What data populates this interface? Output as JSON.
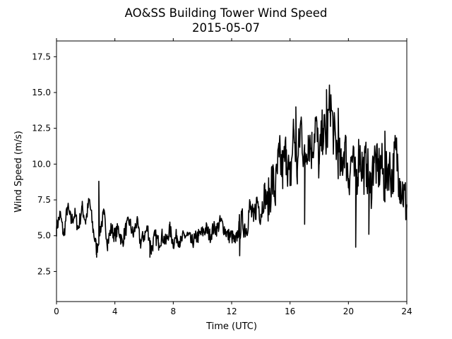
{
  "chart_data": {
    "type": "line",
    "title": "AO&SS Building Tower Wind Speed",
    "subtitle": "2015-05-07",
    "xlabel": "Time (UTC)",
    "ylabel": "Wind Speed (m/s)",
    "xlim": [
      0,
      24
    ],
    "ylim": [
      0.4,
      18.6
    ],
    "x_ticks": [
      0,
      4,
      8,
      12,
      16,
      20,
      24
    ],
    "y_ticks": [
      2.5,
      5.0,
      7.5,
      10.0,
      12.5,
      15.0,
      17.5
    ],
    "x_tick_labels": [
      "0",
      "4",
      "8",
      "12",
      "16",
      "20",
      "24"
    ],
    "y_tick_labels": [
      "2.5",
      "5.0",
      "7.5",
      "10.0",
      "12.5",
      "15.0",
      "17.5"
    ],
    "grid": false,
    "series": [
      {
        "color": "#000000",
        "x": [
          0.0,
          0.25,
          0.5,
          0.75,
          1.0,
          1.25,
          1.5,
          1.75,
          2.0,
          2.25,
          2.5,
          2.75,
          3.0,
          3.25,
          3.5,
          3.75,
          4.0,
          4.25,
          4.5,
          4.75,
          5.0,
          5.25,
          5.5,
          5.75,
          6.0,
          6.25,
          6.5,
          6.75,
          7.0,
          7.25,
          7.5,
          7.75,
          8.0,
          8.25,
          8.5,
          8.75,
          9.0,
          9.25,
          9.5,
          9.75,
          10.0,
          10.25,
          10.5,
          10.75,
          11.0,
          11.25,
          11.5,
          11.75,
          12.0,
          12.25,
          12.5,
          12.75,
          13.0,
          13.25,
          13.5,
          13.75,
          14.0,
          14.25,
          14.5,
          14.75,
          15.0,
          15.25,
          15.5,
          15.75,
          16.0,
          16.25,
          16.5,
          16.75,
          17.0,
          17.25,
          17.5,
          17.75,
          18.0,
          18.25,
          18.5,
          18.75,
          19.0,
          19.25,
          19.5,
          19.75,
          20.0,
          20.25,
          20.5,
          20.75,
          21.0,
          21.25,
          21.5,
          21.75,
          22.0,
          22.25,
          22.5,
          22.75,
          23.0,
          23.25,
          23.5,
          23.75,
          24.0
        ],
        "y": [
          5.5,
          6.5,
          5.0,
          7.0,
          6.0,
          6.5,
          5.5,
          7.0,
          6.0,
          7.5,
          5.5,
          4.0,
          5.5,
          6.5,
          4.5,
          5.5,
          5.0,
          5.5,
          4.5,
          5.5,
          6.0,
          5.0,
          6.0,
          4.5,
          5.0,
          5.5,
          4.0,
          5.0,
          4.5,
          5.0,
          4.5,
          5.5,
          4.5,
          5.0,
          4.5,
          5.0,
          5.0,
          4.5,
          4.8,
          5.0,
          5.2,
          5.5,
          5.0,
          5.5,
          5.5,
          6.0,
          5.5,
          5.0,
          5.0,
          4.5,
          5.5,
          6.0,
          5.5,
          7.0,
          6.0,
          7.5,
          6.5,
          8.0,
          7.0,
          9.0,
          8.0,
          10.5,
          9.5,
          11.0,
          8.5,
          12.5,
          9.5,
          13.0,
          10.0,
          12.0,
          11.0,
          13.0,
          10.0,
          12.5,
          11.5,
          14.5,
          12.0,
          11.0,
          9.5,
          11.5,
          9.0,
          10.5,
          8.5,
          11.0,
          9.5,
          10.0,
          8.0,
          10.5,
          9.5,
          10.0,
          8.5,
          10.0,
          9.0,
          11.0,
          9.0,
          8.0,
          7.0
        ],
        "peaks": [
          {
            "x": 2.9,
            "y": 8.8
          },
          {
            "x": 2.75,
            "y": 3.5
          },
          {
            "x": 6.4,
            "y": 3.5
          },
          {
            "x": 12.55,
            "y": 3.6
          },
          {
            "x": 16.4,
            "y": 14.0
          },
          {
            "x": 17.0,
            "y": 5.8
          },
          {
            "x": 18.5,
            "y": 15.2
          },
          {
            "x": 20.5,
            "y": 4.2
          },
          {
            "x": 21.4,
            "y": 5.1
          },
          {
            "x": 19.3,
            "y": 13.9
          },
          {
            "x": 22.5,
            "y": 12.3
          }
        ]
      }
    ]
  }
}
